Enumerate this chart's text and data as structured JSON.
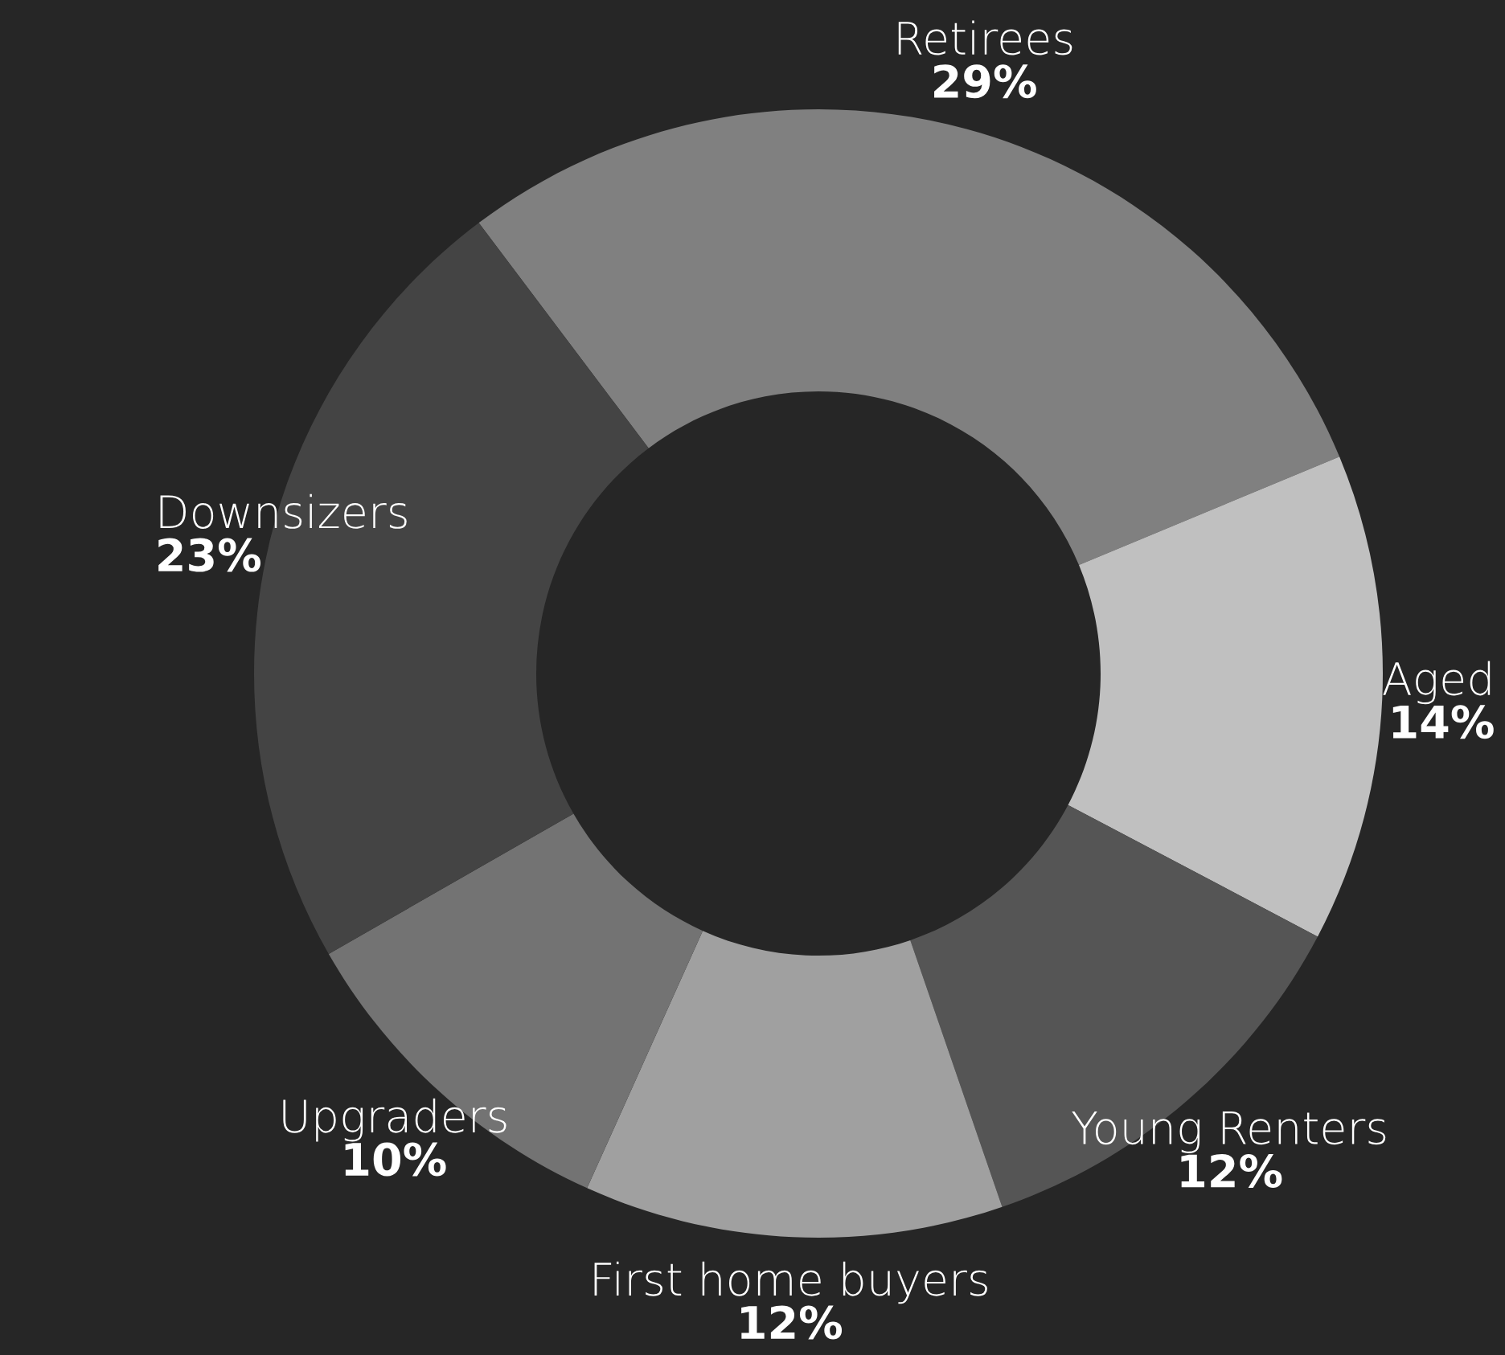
{
  "chart_data": {
    "type": "donut",
    "categories": [
      "Retirees",
      "Aged",
      "Young Renters",
      "First home buyers",
      "Upgraders",
      "Downsizers"
    ],
    "values": [
      29,
      14,
      12,
      12,
      10,
      23
    ],
    "colors": [
      "#808080",
      "#c0c0c0",
      "#555555",
      "#a0a0a0",
      "#737373",
      "#444444"
    ],
    "value_labels": [
      "29%",
      "14%",
      "12%",
      "12%",
      "10%",
      "23%"
    ],
    "legend": false
  }
}
